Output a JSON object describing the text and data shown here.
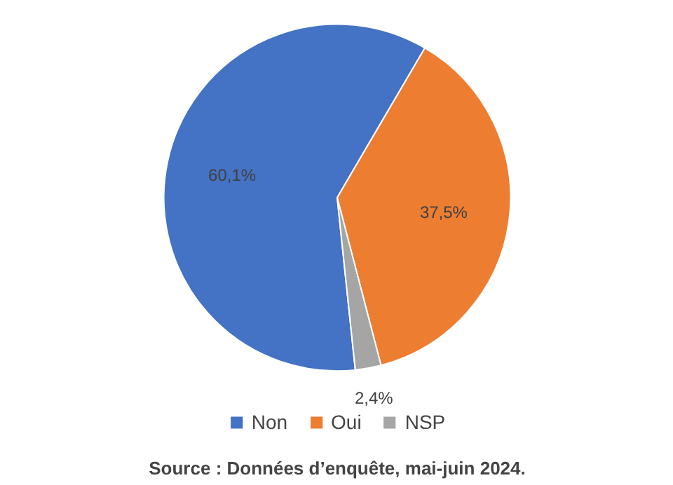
{
  "chart_data": {
    "type": "pie",
    "categories": [
      "Non",
      "Oui",
      "NSP"
    ],
    "values": [
      60.1,
      37.5,
      2.4
    ],
    "colors": [
      "#4472c4",
      "#ed7d31",
      "#a5a5a5"
    ],
    "value_labels": [
      "60,1%",
      "37,5%",
      "2,4%"
    ],
    "legend": "bottom",
    "annotations": [
      "Source : Données d’enquête, mai-juin 2024."
    ]
  }
}
